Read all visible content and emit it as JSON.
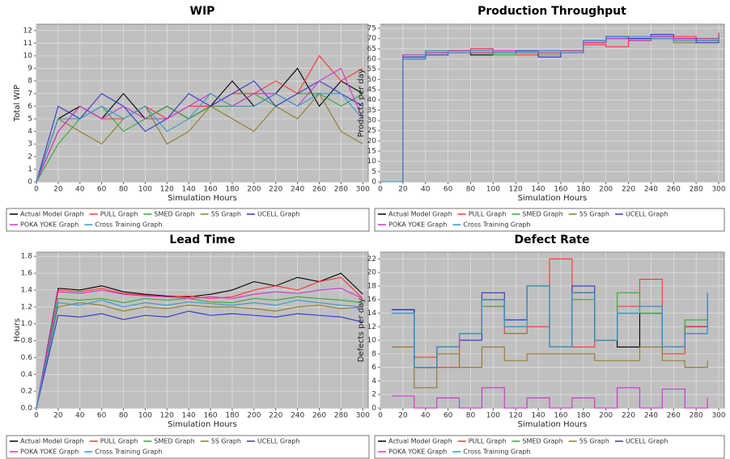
{
  "chart_data": [
    {
      "type": "line",
      "title": "WIP",
      "xlabel": "Simulation Hours",
      "ylabel": "Total WIP",
      "grid": true,
      "step": false,
      "legend": "bottom",
      "x": [
        0,
        20,
        40,
        60,
        80,
        100,
        120,
        140,
        160,
        180,
        200,
        220,
        240,
        260,
        280,
        300
      ],
      "xlim": [
        0,
        305
      ],
      "xticks": [
        0,
        20,
        40,
        60,
        80,
        100,
        120,
        140,
        160,
        180,
        200,
        220,
        240,
        260,
        280,
        300
      ],
      "ylim": [
        0,
        12.5
      ],
      "yticks": [
        0,
        1,
        2,
        3,
        4,
        5,
        6,
        7,
        8,
        9,
        10,
        11,
        12
      ],
      "series": [
        {
          "name": "Actual Model Graph",
          "color": "#000000",
          "values": [
            0,
            5,
            6,
            5,
            7,
            5,
            6,
            5,
            6,
            8,
            6,
            7,
            9,
            6,
            8,
            7
          ]
        },
        {
          "name": "PULL Graph",
          "color": "#ff3333",
          "values": [
            0,
            4,
            6,
            5,
            5,
            6,
            5,
            6,
            6,
            7,
            7,
            8,
            7,
            10,
            8,
            9
          ]
        },
        {
          "name": "SMED Graph",
          "color": "#33aa33",
          "values": [
            0,
            3,
            5,
            6,
            4,
            5,
            6,
            5,
            6,
            6,
            7,
            6,
            7,
            7,
            6,
            7
          ]
        },
        {
          "name": "5S Graph",
          "color": "#8b7d2a",
          "values": [
            0,
            5,
            4,
            3,
            5,
            6,
            3,
            4,
            6,
            5,
            4,
            6,
            5,
            7,
            4,
            3
          ]
        },
        {
          "name": "UCELL Graph",
          "color": "#3333cc",
          "values": [
            0,
            6,
            5,
            7,
            6,
            4,
            5,
            7,
            6,
            7,
            8,
            6,
            7,
            8,
            7,
            6
          ]
        },
        {
          "name": "POKA YOKE Graph",
          "color": "#cc33cc",
          "values": [
            0,
            4,
            6,
            5,
            6,
            5,
            5,
            6,
            7,
            6,
            7,
            7,
            6,
            8,
            9,
            5
          ]
        },
        {
          "name": "Cross Training Graph",
          "color": "#3399cc",
          "values": [
            0,
            5,
            5,
            6,
            5,
            6,
            4,
            5,
            7,
            6,
            6,
            7,
            6,
            7,
            7,
            5
          ]
        }
      ]
    },
    {
      "type": "line",
      "title": "Production Throughput",
      "xlabel": "Simulation Hours",
      "ylabel": "Products per day",
      "grid": true,
      "step": true,
      "legend": "bottom",
      "x": [
        0,
        20,
        40,
        60,
        80,
        100,
        120,
        140,
        160,
        180,
        200,
        220,
        240,
        260,
        280,
        300
      ],
      "xlim": [
        0,
        305
      ],
      "xticks": [
        0,
        20,
        40,
        60,
        80,
        100,
        120,
        140,
        160,
        180,
        200,
        220,
        240,
        260,
        280,
        300
      ],
      "ylim": [
        0,
        77
      ],
      "yticks": [
        0,
        5,
        10,
        15,
        20,
        25,
        30,
        35,
        40,
        45,
        50,
        55,
        60,
        65,
        70,
        75
      ],
      "series": [
        {
          "name": "Actual Model Graph",
          "color": "#000000",
          "values": [
            0,
            60,
            63,
            64,
            62,
            63,
            63,
            64,
            64,
            68,
            71,
            70,
            71,
            70,
            69,
            72
          ]
        },
        {
          "name": "PULL Graph",
          "color": "#ff3333",
          "values": [
            0,
            62,
            64,
            63,
            65,
            64,
            62,
            63,
            63,
            67,
            66,
            69,
            70,
            71,
            70,
            73
          ]
        },
        {
          "name": "SMED Graph",
          "color": "#33aa33",
          "values": [
            0,
            61,
            64,
            64,
            63,
            62,
            64,
            63,
            64,
            69,
            70,
            70,
            71,
            69,
            70,
            71
          ]
        },
        {
          "name": "5S Graph",
          "color": "#8b7d2a",
          "values": [
            0,
            60,
            63,
            64,
            63,
            63,
            64,
            62,
            64,
            68,
            70,
            69,
            70,
            68,
            69,
            70
          ]
        },
        {
          "name": "UCELL Graph",
          "color": "#3333cc",
          "values": [
            0,
            61,
            62,
            63,
            64,
            63,
            64,
            61,
            63,
            69,
            71,
            70,
            72,
            70,
            68,
            71
          ]
        },
        {
          "name": "POKA YOKE Graph",
          "color": "#cc33cc",
          "values": [
            0,
            62,
            63,
            64,
            63,
            64,
            63,
            63,
            64,
            68,
            70,
            69,
            71,
            70,
            70,
            72
          ]
        },
        {
          "name": "Cross Training Graph",
          "color": "#3399cc",
          "values": [
            0,
            60,
            64,
            63,
            64,
            63,
            63,
            64,
            63,
            69,
            71,
            71,
            70,
            69,
            69,
            71
          ]
        }
      ]
    },
    {
      "type": "line",
      "title": "Lead Time",
      "xlabel": "Simulation Hours",
      "ylabel": "Hours",
      "grid": true,
      "step": false,
      "legend": "bottom",
      "x": [
        0,
        20,
        40,
        60,
        80,
        100,
        120,
        140,
        160,
        180,
        200,
        220,
        240,
        260,
        280,
        300
      ],
      "xlim": [
        0,
        305
      ],
      "xticks": [
        0,
        20,
        40,
        60,
        80,
        100,
        120,
        140,
        160,
        180,
        200,
        220,
        240,
        260,
        280,
        300
      ],
      "ylim": [
        0,
        1.85
      ],
      "yticks": [
        {
          "value": 0,
          "label": "0.0"
        },
        0.2,
        0.4,
        0.6,
        0.8,
        {
          "value": 1,
          "label": "1.0"
        },
        1.2,
        1.4,
        1.6,
        1.8
      ],
      "series": [
        {
          "name": "Actual Model Graph",
          "color": "#000000",
          "values": [
            0,
            1.42,
            1.4,
            1.45,
            1.38,
            1.35,
            1.33,
            1.32,
            1.35,
            1.4,
            1.5,
            1.45,
            1.55,
            1.5,
            1.6,
            1.35
          ]
        },
        {
          "name": "PULL Graph",
          "color": "#ff3333",
          "values": [
            0,
            1.4,
            1.38,
            1.42,
            1.36,
            1.34,
            1.32,
            1.33,
            1.3,
            1.32,
            1.4,
            1.45,
            1.4,
            1.5,
            1.55,
            1.3
          ]
        },
        {
          "name": "SMED Graph",
          "color": "#33aa33",
          "values": [
            0,
            1.3,
            1.28,
            1.3,
            1.25,
            1.3,
            1.28,
            1.3,
            1.26,
            1.25,
            1.3,
            1.28,
            1.32,
            1.3,
            1.28,
            1.25
          ]
        },
        {
          "name": "5S Graph",
          "color": "#8b7d2a",
          "values": [
            0,
            1.2,
            1.25,
            1.22,
            1.15,
            1.2,
            1.18,
            1.22,
            1.2,
            1.2,
            1.18,
            1.15,
            1.2,
            1.22,
            1.18,
            1.2
          ]
        },
        {
          "name": "UCELL Graph",
          "color": "#3333cc",
          "values": [
            0,
            1.1,
            1.08,
            1.12,
            1.05,
            1.1,
            1.08,
            1.15,
            1.1,
            1.12,
            1.1,
            1.08,
            1.12,
            1.1,
            1.08,
            1.02
          ]
        },
        {
          "name": "POKA YOKE Graph",
          "color": "#cc33cc",
          "values": [
            0,
            1.38,
            1.36,
            1.4,
            1.35,
            1.33,
            1.32,
            1.3,
            1.32,
            1.3,
            1.35,
            1.38,
            1.36,
            1.4,
            1.42,
            1.3
          ]
        },
        {
          "name": "Cross Training Graph",
          "color": "#3399cc",
          "values": [
            0,
            1.25,
            1.22,
            1.28,
            1.2,
            1.25,
            1.22,
            1.26,
            1.24,
            1.22,
            1.25,
            1.22,
            1.28,
            1.25,
            1.22,
            1.2
          ]
        }
      ]
    },
    {
      "type": "line",
      "title": "Defect Rate",
      "xlabel": "Simulation Hours",
      "ylabel": "Defects per day",
      "grid": true,
      "step": true,
      "legend": "bottom",
      "x": [
        10,
        30,
        50,
        70,
        90,
        110,
        130,
        150,
        170,
        190,
        210,
        230,
        250,
        270,
        290
      ],
      "xlim": [
        0,
        305
      ],
      "xticks": [
        0,
        20,
        40,
        60,
        80,
        100,
        120,
        140,
        160,
        180,
        200,
        220,
        240,
        260,
        280,
        300
      ],
      "ylim": [
        0,
        23
      ],
      "yticks": [
        0,
        2,
        4,
        6,
        8,
        10,
        12,
        14,
        16,
        18,
        20,
        22
      ],
      "series": [
        {
          "name": "Actual Model Graph",
          "color": "#000000",
          "values": [
            14.5,
            6,
            9,
            11,
            16,
            13,
            18,
            9,
            17,
            10,
            9,
            14,
            9,
            12,
            16
          ]
        },
        {
          "name": "PULL Graph",
          "color": "#ff3333",
          "values": [
            9,
            7.5,
            6,
            11,
            15,
            11,
            12,
            22,
            9,
            10,
            15,
            19,
            8,
            12,
            16
          ]
        },
        {
          "name": "SMED Graph",
          "color": "#33aa33",
          "values": [
            14,
            6,
            9,
            11,
            15,
            12,
            18,
            9,
            16,
            10,
            17,
            14,
            9,
            13,
            17
          ]
        },
        {
          "name": "5S Graph",
          "color": "#8b7d2a",
          "values": [
            9,
            3,
            8,
            6,
            9,
            7,
            8,
            8,
            8,
            7,
            7,
            9,
            7,
            6,
            7
          ]
        },
        {
          "name": "UCELL Graph",
          "color": "#3333cc",
          "values": [
            14.5,
            6,
            9,
            10,
            17,
            13,
            18,
            9,
            18,
            10,
            14,
            15,
            9,
            11,
            17
          ]
        },
        {
          "name": "POKA YOKE Graph",
          "color": "#cc33cc",
          "values": [
            1.8,
            0,
            1.5,
            0,
            3,
            0,
            1.5,
            0,
            1.5,
            0,
            3,
            0,
            2.8,
            0,
            1.5
          ]
        },
        {
          "name": "Cross Training Graph",
          "color": "#3399cc",
          "values": [
            14,
            6,
            9,
            11,
            16,
            12,
            18,
            9,
            17,
            10,
            14,
            15,
            9,
            11,
            17
          ]
        }
      ]
    }
  ]
}
